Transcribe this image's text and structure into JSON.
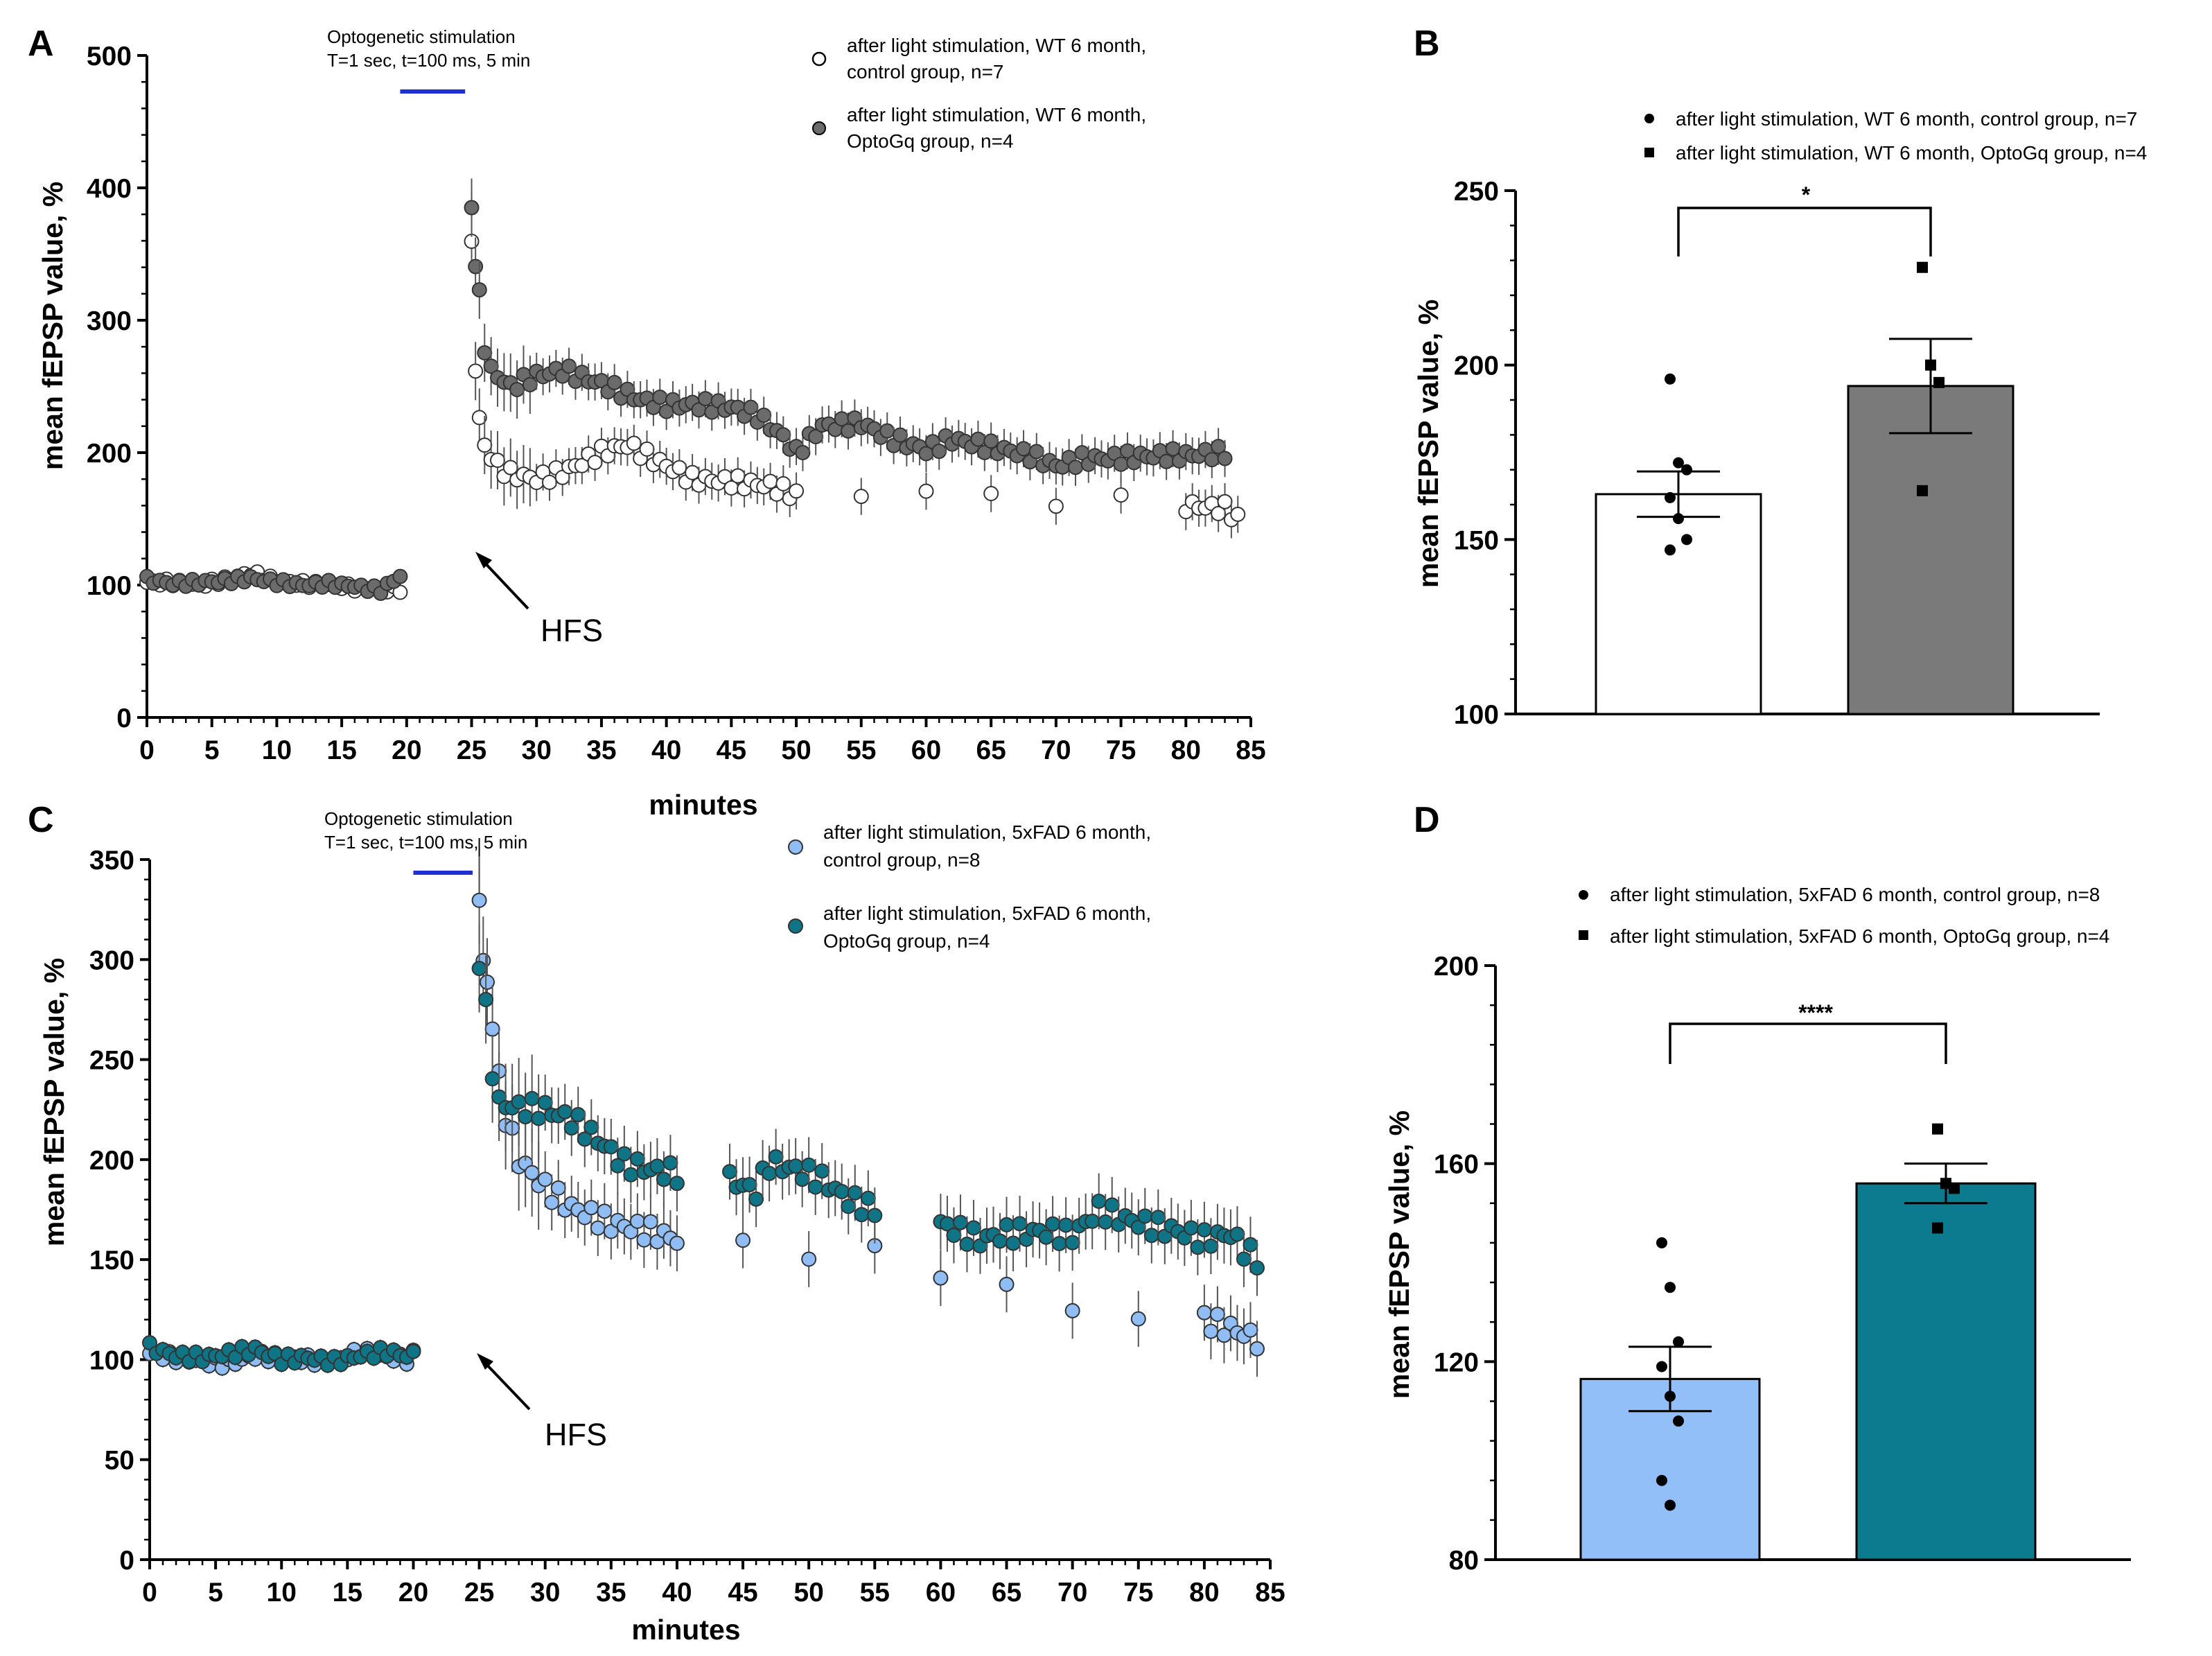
{
  "colors": {
    "wt_control": "#ffffff",
    "wt_optogq": "#6b6b6b",
    "fad_control": "#8fbdf4",
    "fad_optogq": "#0f7485",
    "bar_wt_control": "#ffffff",
    "bar_wt_optogq": "#7a7a7a",
    "bar_fad_control": "#92bff7",
    "bar_fad_optogq": "#0c7a8f",
    "stim_bar": "#1f2fd6",
    "axis": "#000000"
  },
  "chart_data": [
    {
      "panel": "A",
      "type": "scatter",
      "xlabel": "minutes",
      "ylabel": "mean fEPSP value, %",
      "xlim": [
        0,
        85
      ],
      "ylim": [
        0,
        500
      ],
      "xticks": [
        0,
        5,
        10,
        15,
        20,
        25,
        30,
        35,
        40,
        45,
        50,
        55,
        60,
        65,
        70,
        75,
        80,
        85
      ],
      "yticks": [
        0,
        100,
        200,
        300,
        400,
        500
      ],
      "stimulation": {
        "label_line1": "Optogenetic stimulation",
        "label_line2": "T=1 sec, t=100 ms, 5 min",
        "x_start": 19.5,
        "x_end": 24.5
      },
      "annotation": "HFS",
      "annotation_x": 25,
      "series": [
        {
          "name": "after light stimulation, WT 6 month, control group, n=7",
          "legend_line1": "after light stimulation, WT 6 month,",
          "legend_line2": "control group, n=7",
          "marker": "circle-open",
          "points": [
            [
              0,
              102
            ],
            [
              2,
              102
            ],
            [
              4,
              100
            ],
            [
              6,
              104
            ],
            [
              8,
              109
            ],
            [
              10,
              103
            ],
            [
              12,
              101
            ],
            [
              14,
              100
            ],
            [
              16,
              98
            ],
            [
              18,
              96
            ],
            [
              19.5,
              97
            ],
            [
              25,
              355
            ],
            [
              25.3,
              265
            ],
            [
              25.6,
              225
            ],
            [
              26,
              205
            ],
            [
              27,
              190
            ],
            [
              28,
              184
            ],
            [
              30,
              180
            ],
            [
              32,
              185
            ],
            [
              34,
              195
            ],
            [
              35,
              200
            ],
            [
              37,
              206
            ],
            [
              39,
              195
            ],
            [
              40,
              190
            ],
            [
              42,
              180
            ],
            [
              45,
              178
            ],
            [
              48,
              175
            ],
            [
              50,
              168
            ],
            [
              55,
              168
            ],
            [
              60,
              172
            ],
            [
              65,
              166
            ],
            [
              70,
              164
            ],
            [
              75,
              163
            ],
            [
              80,
              160
            ],
            [
              83,
              158
            ],
            [
              84,
              150
            ]
          ]
        },
        {
          "name": "after light stimulation, WT 6 month, OptoGq group, n=4",
          "legend_line1": "after light stimulation, WT 6 month,",
          "legend_line2": "OptoGq group, n=4",
          "marker": "circle-gray",
          "points": [
            [
              0,
              104
            ],
            [
              2,
              101
            ],
            [
              4,
              102
            ],
            [
              6,
              103
            ],
            [
              8,
              105
            ],
            [
              10,
              102
            ],
            [
              12,
              100
            ],
            [
              14,
              101
            ],
            [
              16,
              99
            ],
            [
              18,
              96
            ],
            [
              19.5,
              107
            ],
            [
              25,
              382
            ],
            [
              25.3,
              345
            ],
            [
              25.6,
              318
            ],
            [
              26,
              280
            ],
            [
              26.5,
              262
            ],
            [
              28,
              250
            ],
            [
              30,
              258
            ],
            [
              32,
              262
            ],
            [
              35,
              252
            ],
            [
              38,
              240
            ],
            [
              40,
              236
            ],
            [
              43,
              236
            ],
            [
              45,
              234
            ],
            [
              47,
              228
            ],
            [
              49,
              212
            ],
            [
              50,
              200
            ],
            [
              52,
              220
            ],
            [
              55,
              222
            ],
            [
              57,
              212
            ],
            [
              60,
              202
            ],
            [
              62,
              210
            ],
            [
              65,
              204
            ],
            [
              68,
              198
            ],
            [
              70,
              190
            ],
            [
              72,
              195
            ],
            [
              75,
              196
            ],
            [
              78,
              198
            ],
            [
              80,
              198
            ],
            [
              83,
              200
            ]
          ]
        }
      ]
    },
    {
      "panel": "B",
      "type": "bar",
      "ylabel": "mean fEPSP value, %",
      "ylim": [
        100,
        250
      ],
      "yticks": [
        100,
        150,
        200,
        250
      ],
      "significance": "*",
      "groups": [
        {
          "name": "after light stimulation, WT 6 month, control group, n=7",
          "marker": "circle",
          "mean": 163,
          "sem": 6.5,
          "points": [
            196,
            172,
            170,
            162,
            156,
            150,
            147
          ]
        },
        {
          "name": "after light stimulation, WT 6 month, OptoGq group, n=4",
          "marker": "square",
          "mean": 194,
          "sem": 13.5,
          "points": [
            228,
            200,
            195,
            164
          ]
        }
      ]
    },
    {
      "panel": "C",
      "type": "scatter",
      "xlabel": "minutes",
      "ylabel": "mean fEPSP value, %",
      "xlim": [
        0,
        85
      ],
      "ylim": [
        0,
        350
      ],
      "xticks": [
        0,
        5,
        10,
        15,
        20,
        25,
        30,
        35,
        40,
        45,
        50,
        55,
        60,
        65,
        70,
        75,
        80,
        85
      ],
      "yticks": [
        0,
        50,
        100,
        150,
        200,
        250,
        300,
        350
      ],
      "stimulation": {
        "label_line1": "Optogenetic stimulation",
        "label_line2": "T=1 sec, t=100 ms, 5 min",
        "x_start": 20,
        "x_end": 24.5
      },
      "annotation": "HFS",
      "annotation_x": 25,
      "series": [
        {
          "name": "after light stimulation, 5xFAD 6 month, control group, n=8",
          "legend_line1": "after light stimulation, 5xFAD 6 month,",
          "legend_line2": "control group, n=8",
          "marker": "circle-lightblue",
          "points": [
            [
              0,
              103
            ],
            [
              2,
              101
            ],
            [
              4,
              99
            ],
            [
              6,
              98
            ],
            [
              8,
              102
            ],
            [
              10,
              101
            ],
            [
              12,
              100
            ],
            [
              14,
              99
            ],
            [
              16,
              104
            ],
            [
              18,
              101
            ],
            [
              20,
              100
            ],
            [
              25,
              333
            ],
            [
              25.3,
              298
            ],
            [
              25.6,
              288
            ],
            [
              26,
              268
            ],
            [
              26.5,
              240
            ],
            [
              27,
              222
            ],
            [
              28,
              200
            ],
            [
              30,
              186
            ],
            [
              32,
              176
            ],
            [
              35,
              168
            ],
            [
              38,
              164
            ],
            [
              40,
              160
            ],
            [
              45,
              156
            ],
            [
              50,
              155
            ],
            [
              55,
              152
            ],
            [
              60,
              145
            ],
            [
              65,
              135
            ],
            [
              70,
              125
            ],
            [
              75,
              122
            ],
            [
              80,
              120
            ],
            [
              83,
              113
            ],
            [
              84,
              110
            ]
          ]
        },
        {
          "name": "after light stimulation, 5xFAD 6 month, OptoGq group, n=4",
          "legend_line1": "after light stimulation, 5xFAD 6 month,",
          "legend_line2": "OptoGq group, n=4",
          "marker": "circle-teal",
          "points": [
            [
              0,
              106
            ],
            [
              2,
              102
            ],
            [
              4,
              101
            ],
            [
              6,
              103
            ],
            [
              8,
              105
            ],
            [
              10,
              100
            ],
            [
              12,
              101
            ],
            [
              14,
              99
            ],
            [
              16,
              102
            ],
            [
              18,
              104
            ],
            [
              20,
              101
            ],
            [
              25,
              300
            ],
            [
              25.5,
              275
            ],
            [
              26,
              245
            ],
            [
              26.5,
              228
            ],
            [
              28,
              226
            ],
            [
              30,
              225
            ],
            [
              32,
              220
            ],
            [
              34,
              210
            ],
            [
              36,
              198
            ],
            [
              38,
              195
            ],
            [
              40,
              193
            ],
            [
              44,
              190
            ],
            [
              46,
              184
            ],
            [
              47,
              198
            ],
            [
              49,
              195
            ],
            [
              51,
              190
            ],
            [
              53,
              180
            ],
            [
              55,
              175
            ],
            [
              60,
              168
            ],
            [
              63,
              160
            ],
            [
              65,
              163
            ],
            [
              68,
              164
            ],
            [
              70,
              162
            ],
            [
              72,
              175
            ],
            [
              74,
              170
            ],
            [
              76,
              167
            ],
            [
              78,
              164
            ],
            [
              80,
              160
            ],
            [
              82,
              163
            ],
            [
              83,
              155
            ],
            [
              84,
              150
            ]
          ]
        }
      ]
    },
    {
      "panel": "D",
      "type": "bar",
      "ylabel": "mean fEPSP value, %",
      "ylim": [
        80,
        200
      ],
      "yticks": [
        80,
        120,
        160,
        200
      ],
      "significance": "****",
      "groups": [
        {
          "name": "after light stimulation, 5xFAD 6 month, control group, n=8",
          "marker": "circle",
          "mean": 116.5,
          "sem": 6.5,
          "points": [
            144,
            135,
            124,
            119,
            113,
            108,
            96,
            91
          ]
        },
        {
          "name": "after light stimulation, 5xFAD 6 month, OptoGq group, n=4",
          "marker": "square",
          "mean": 156,
          "sem": 4,
          "points": [
            167,
            156,
            155,
            147
          ]
        }
      ]
    }
  ]
}
